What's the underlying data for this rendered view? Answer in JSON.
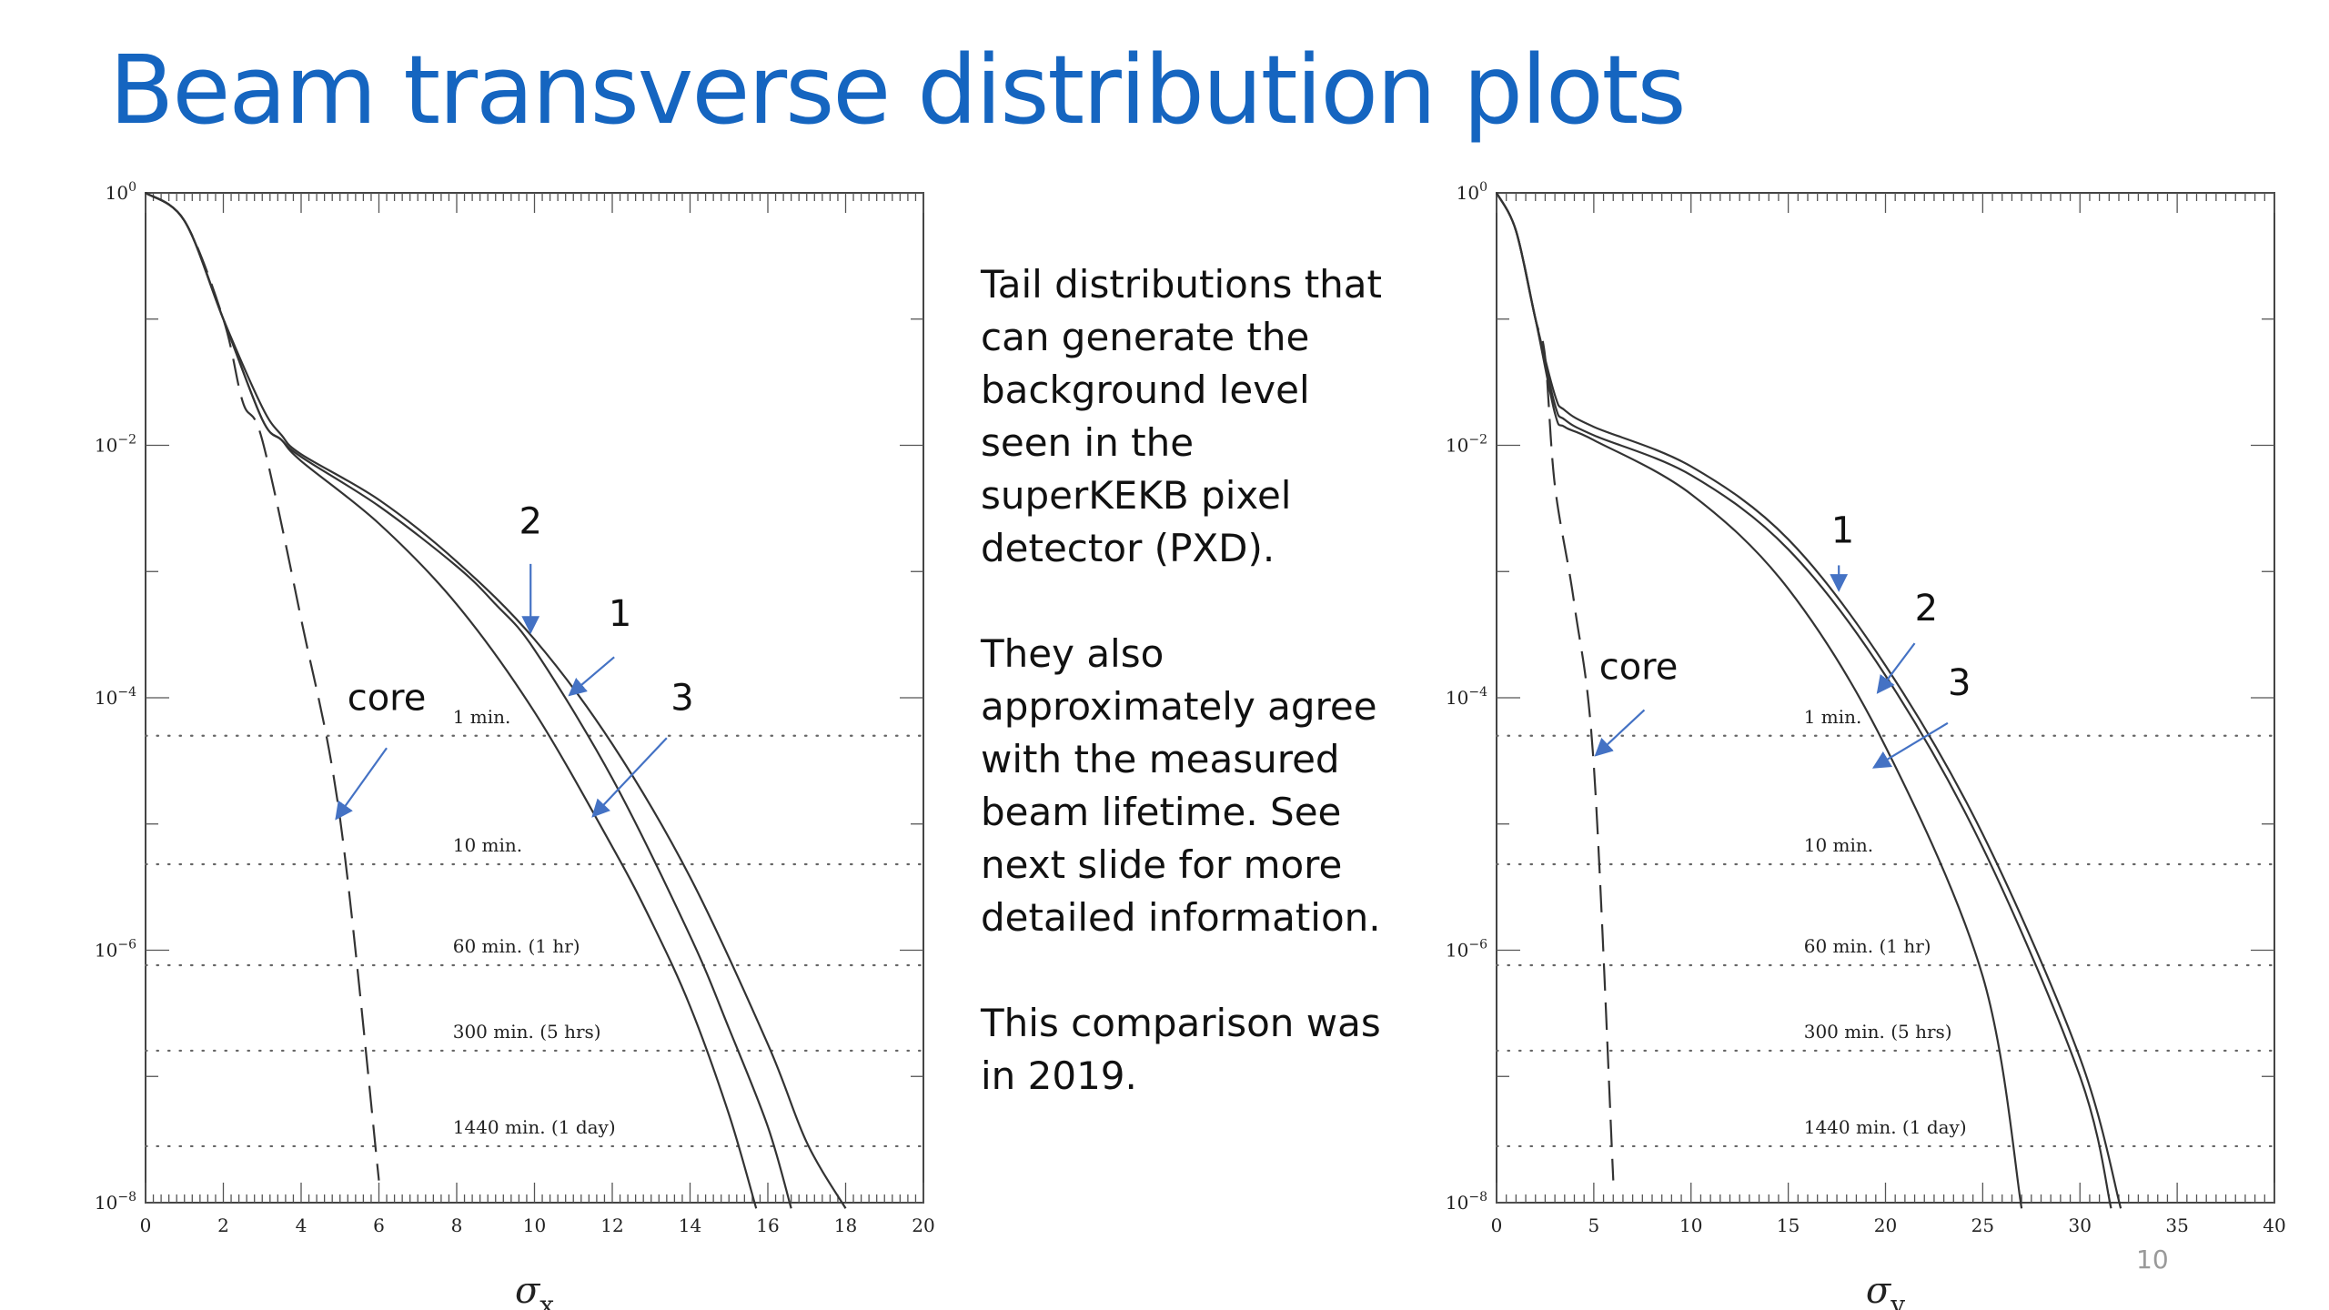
{
  "slide": {
    "title": "Beam transverse distribution plots",
    "paragraphs": [
      "Tail distributions that can generate the background level seen in the superKEKB pixel detector (PXD).",
      "They also approximately agree with the measured beam lifetime. See next slide for more detailed information.",
      "This comparison was in 2019."
    ],
    "page_number": "10"
  },
  "colors": {
    "title": "#1565c0",
    "arrow": "#4472c4",
    "curve": "#333333"
  },
  "chart_data": [
    {
      "type": "line",
      "xlabel": "σ",
      "xlabel_sub": "x",
      "y_scale": "log",
      "xlim": [
        0,
        20
      ],
      "ylim": [
        1e-08,
        1
      ],
      "x_ticks": [
        0,
        2,
        4,
        6,
        8,
        10,
        12,
        14,
        16,
        18,
        20
      ],
      "y_ticks": [
        {
          "value": 1,
          "base": "10",
          "exp": "0"
        },
        {
          "value": 0.01,
          "base": "10",
          "exp": "−2"
        },
        {
          "value": 0.0001,
          "base": "10",
          "exp": "−4"
        },
        {
          "value": 1e-06,
          "base": "10",
          "exp": "−6"
        },
        {
          "value": 1e-08,
          "base": "10",
          "exp": "−8"
        }
      ],
      "reference_lines": [
        {
          "label": "1 min.",
          "y": 5e-05
        },
        {
          "label": "10 min.",
          "y": 4.8e-06
        },
        {
          "label": "60 min.  (1 hr)",
          "y": 7.6e-07
        },
        {
          "label": "300 min.  (5 hrs)",
          "y": 1.6e-07
        },
        {
          "label": "1440 min.  (1 day)",
          "y": 2.8e-08
        }
      ],
      "series": [
        {
          "name": "core",
          "dashed": true,
          "x": [
            0,
            1,
            2,
            2.5,
            3,
            4,
            5,
            6
          ],
          "y": [
            1,
            0.6,
            0.1,
            0.022,
            0.011,
            0.00042,
            1.1e-05,
            1.5e-08
          ]
        },
        {
          "name": "1",
          "x": [
            0,
            1,
            2,
            3,
            3.5,
            4,
            6,
            8,
            10,
            12,
            14,
            16,
            17,
            18
          ],
          "y": [
            1,
            0.6,
            0.1,
            0.02,
            0.012,
            0.0085,
            0.0037,
            0.0012,
            0.00029,
            4.3e-05,
            3.8e-06,
            1.8e-07,
            3e-08,
            9e-09
          ]
        },
        {
          "name": "2",
          "x": [
            0,
            1,
            2,
            3,
            3.5,
            4,
            6,
            8,
            9,
            10,
            12,
            14,
            15,
            16,
            16.6
          ],
          "y": [
            1,
            0.6,
            0.1,
            0.016,
            0.011,
            0.0081,
            0.0033,
            0.0011,
            0.00055,
            0.00024,
            2.3e-05,
            1.3e-06,
            2.4e-07,
            4e-08,
            9e-09
          ]
        },
        {
          "name": "3",
          "x": [
            0,
            1,
            2,
            3,
            3.5,
            4,
            6,
            8,
            10,
            12,
            13,
            14,
            15,
            15.7
          ],
          "y": [
            1,
            0.6,
            0.1,
            0.016,
            0.011,
            0.0075,
            0.0024,
            0.00055,
            7.7e-05,
            6.6e-06,
            1.7e-06,
            3.6e-07,
            5e-08,
            9e-09
          ]
        }
      ],
      "annotations": [
        {
          "text": "core",
          "tx": 6.2,
          "ty": 8e-05,
          "ax": 4.9,
          "ay": 1.1e-05,
          "tx0": 6.2,
          "ty0": 4e-05
        },
        {
          "text": "2",
          "tx": 9.9,
          "ty": 0.002,
          "ax": 9.9,
          "ay": 0.00033,
          "tx0": 9.9,
          "ty0": 0.00115
        },
        {
          "text": "1",
          "tx": 12.2,
          "ty": 0.00037,
          "ax": 10.9,
          "ay": 0.000105,
          "tx0": 12.05,
          "ty0": 0.00021
        },
        {
          "text": "3",
          "tx": 13.8,
          "ty": 8e-05,
          "ax": 11.5,
          "ay": 1.15e-05,
          "tx0": 13.4,
          "ty0": 4.8e-05
        }
      ]
    },
    {
      "type": "line",
      "xlabel": "σ",
      "xlabel_sub": "y",
      "y_scale": "log",
      "xlim": [
        0,
        40
      ],
      "ylim": [
        1e-08,
        1
      ],
      "x_ticks": [
        0,
        5,
        10,
        15,
        20,
        25,
        30,
        35,
        40
      ],
      "y_ticks": [
        {
          "value": 1,
          "base": "10",
          "exp": "0"
        },
        {
          "value": 0.01,
          "base": "10",
          "exp": "−2"
        },
        {
          "value": 0.0001,
          "base": "10",
          "exp": "−4"
        },
        {
          "value": 1e-06,
          "base": "10",
          "exp": "−6"
        },
        {
          "value": 1e-08,
          "base": "10",
          "exp": "−8"
        }
      ],
      "reference_lines": [
        {
          "label": "1 min.",
          "y": 5e-05
        },
        {
          "label": "10 min.",
          "y": 4.8e-06
        },
        {
          "label": "60 min.  (1 hr)",
          "y": 7.6e-07
        },
        {
          "label": "300 min.  (5 hrs)",
          "y": 1.6e-07
        },
        {
          "label": "1440 min.  (1 day)",
          "y": 2.8e-08
        }
      ],
      "series": [
        {
          "name": "core",
          "dashed": true,
          "x": [
            0,
            1,
            2,
            2.5,
            3,
            4,
            5,
            6
          ],
          "y": [
            1,
            0.5,
            0.1,
            0.05,
            0.0048,
            0.00055,
            2.9e-05,
            1.5e-08
          ]
        },
        {
          "name": "1",
          "x": [
            0,
            1,
            2,
            3,
            3.5,
            5,
            10,
            15,
            20,
            25,
            30,
            32.1
          ],
          "y": [
            1,
            0.5,
            0.1,
            0.025,
            0.019,
            0.014,
            0.0068,
            0.0018,
            0.00018,
            8.3e-06,
            1.4e-07,
            9e-09
          ]
        },
        {
          "name": "2",
          "x": [
            0,
            1,
            2,
            3,
            3.5,
            5,
            10,
            15,
            20,
            25,
            30,
            31.6
          ],
          "y": [
            1,
            0.5,
            0.1,
            0.021,
            0.016,
            0.012,
            0.0058,
            0.0015,
            0.00015,
            6.5e-06,
            1e-07,
            9e-09
          ]
        },
        {
          "name": "3",
          "x": [
            0,
            1,
            2,
            3,
            3.5,
            5,
            10,
            15,
            20,
            25,
            27
          ],
          "y": [
            1,
            0.5,
            0.1,
            0.018,
            0.014,
            0.011,
            0.0041,
            0.00073,
            4.1e-05,
            6.2e-07,
            9e-09
          ]
        }
      ],
      "annotations": [
        {
          "text": "core",
          "tx": 7.3,
          "ty": 0.00014,
          "ax": 5.1,
          "ay": 3.5e-05,
          "tx0": 7.6,
          "ty0": 8e-05
        },
        {
          "text": "1",
          "tx": 17.8,
          "ty": 0.0017,
          "ax": 17.6,
          "ay": 0.00071,
          "tx0": 17.6,
          "ty0": 0.00112
        },
        {
          "text": "2",
          "tx": 22.1,
          "ty": 0.00041,
          "ax": 19.6,
          "ay": 0.00011,
          "tx0": 21.5,
          "ty0": 0.00027
        },
        {
          "text": "3",
          "tx": 23.8,
          "ty": 0.000105,
          "ax": 19.4,
          "ay": 2.8e-05,
          "tx0": 23.2,
          "ty0": 6.3e-05
        }
      ]
    }
  ]
}
